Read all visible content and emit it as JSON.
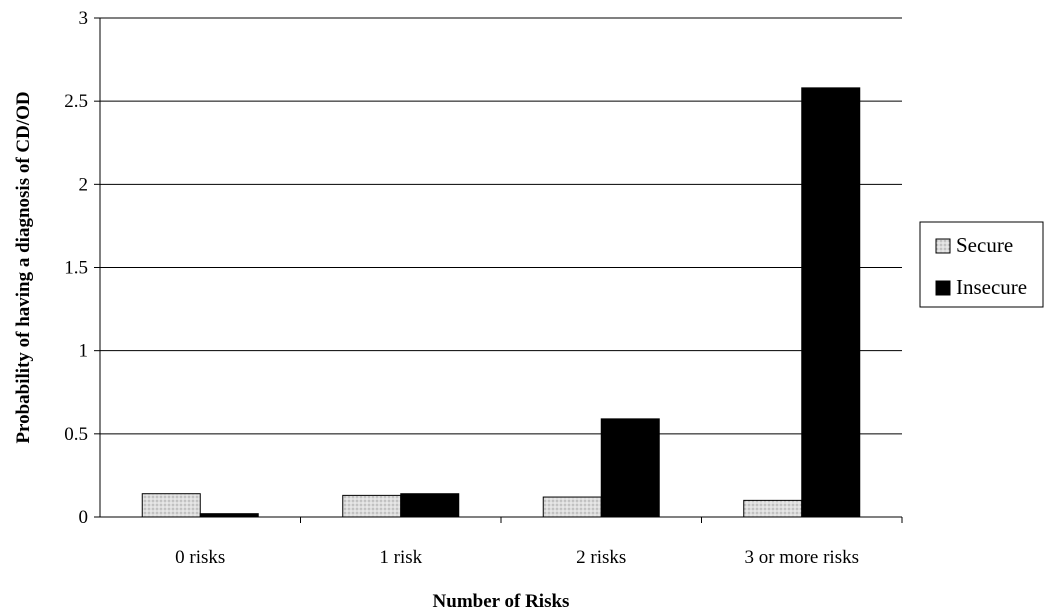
{
  "chart_data": {
    "type": "bar",
    "title": "",
    "xlabel": "Number of Risks",
    "ylabel": "Probability of having a diagnosis of CD/OD",
    "categories": [
      "0 risks",
      "1 risk",
      "2 risks",
      "3 or more risks"
    ],
    "series": [
      {
        "name": "Secure",
        "values": [
          0.14,
          0.13,
          0.12,
          0.1
        ],
        "color": "#d9d9d9"
      },
      {
        "name": "Insecure",
        "values": [
          0.02,
          0.14,
          0.59,
          2.58
        ],
        "color": "#000000"
      }
    ],
    "ylim": [
      0,
      3
    ],
    "yticks": [
      0,
      0.5,
      1,
      1.5,
      2,
      2.5,
      3
    ],
    "ytick_labels": [
      "0",
      "0.5",
      "1",
      "1.5",
      "2",
      "2.5",
      "3"
    ],
    "grid": true,
    "legend_position": "right"
  }
}
